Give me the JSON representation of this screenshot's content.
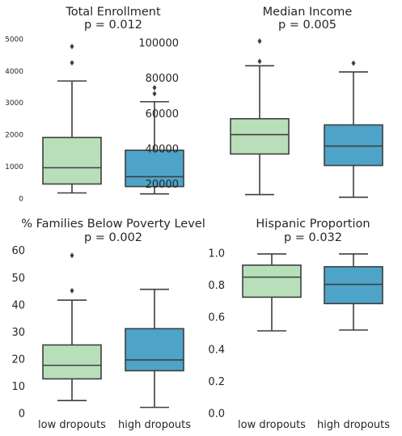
{
  "colors": {
    "low_dropouts": "#b8dfba",
    "high_dropouts": "#4ea3c8",
    "line": "#3f3f3f"
  },
  "chart_data": [
    {
      "type": "box",
      "title": "Total Enrollment",
      "subtitle": "p = 0.012",
      "categories": [
        "low dropouts",
        "high dropouts"
      ],
      "show_xticks": false,
      "ylim": [
        0,
        5200
      ],
      "yticks": [
        0,
        1000,
        2000,
        3000,
        4000,
        5000
      ],
      "ytick_labels": [
        "0",
        "1000",
        "2000",
        "3000",
        "4000",
        "5000"
      ],
      "boxes": [
        {
          "name": "low dropouts",
          "whisker_low": 190,
          "q1": 470,
          "median": 980,
          "q3": 1930,
          "whisker_high": 3700,
          "outliers": [
            4270,
            4780
          ]
        },
        {
          "name": "high dropouts",
          "whisker_low": 160,
          "q1": 390,
          "median": 700,
          "q3": 1530,
          "whisker_high": 3050,
          "outliers": [
            3300,
            3490
          ]
        }
      ]
    },
    {
      "type": "box",
      "title": "Median Income",
      "subtitle": "p = 0.005",
      "categories": [
        "low dropouts",
        "high dropouts"
      ],
      "show_xticks": false,
      "ylim": [
        12000,
        106000
      ],
      "yticks": [
        20000,
        40000,
        60000,
        80000,
        100000
      ],
      "ytick_labels": [
        "20000",
        "40000",
        "60000",
        "80000",
        "100000"
      ],
      "boxes": [
        {
          "name": "low dropouts",
          "whisker_low": 14500,
          "q1": 37500,
          "median": 48500,
          "q3": 57500,
          "whisker_high": 87500,
          "outliers": [
            90000,
            101500
          ]
        },
        {
          "name": "high dropouts",
          "whisker_low": 13000,
          "q1": 31000,
          "median": 42000,
          "q3": 54000,
          "whisker_high": 84000,
          "outliers": [
            89000
          ]
        }
      ]
    },
    {
      "type": "box",
      "title": "% Families Below Poverty Level",
      "subtitle": "p = 0.002",
      "categories": [
        "low dropouts",
        "high dropouts"
      ],
      "show_xticks": true,
      "ylim": [
        0,
        62
      ],
      "yticks": [
        0,
        10,
        20,
        30,
        40,
        50,
        60
      ],
      "ytick_labels": [
        "0",
        "10",
        "20",
        "30",
        "40",
        "50",
        "60"
      ],
      "boxes": [
        {
          "name": "low dropouts",
          "whisker_low": 5,
          "q1": 13,
          "median": 18,
          "q3": 25.5,
          "whisker_high": 42,
          "outliers": [
            45.5,
            58.5
          ]
        },
        {
          "name": "high dropouts",
          "whisker_low": 2.5,
          "q1": 16,
          "median": 20,
          "q3": 31.5,
          "whisker_high": 46,
          "outliers": []
        }
      ]
    },
    {
      "type": "box",
      "title": "Hispanic Proportion",
      "subtitle": "p = 0.032",
      "categories": [
        "low dropouts",
        "high dropouts"
      ],
      "show_xticks": true,
      "ylim": [
        0,
        1.05
      ],
      "yticks": [
        0,
        0.2,
        0.4,
        0.6,
        0.8,
        1.0
      ],
      "ytick_labels": [
        "0.0",
        "0.2",
        "0.4",
        "0.6",
        "0.8",
        "1.0"
      ],
      "boxes": [
        {
          "name": "low dropouts",
          "whisker_low": 0.52,
          "q1": 0.73,
          "median": 0.855,
          "q3": 0.93,
          "whisker_high": 1.0,
          "outliers": []
        },
        {
          "name": "high dropouts",
          "whisker_low": 0.525,
          "q1": 0.69,
          "median": 0.81,
          "q3": 0.92,
          "whisker_high": 1.0,
          "outliers": []
        }
      ]
    }
  ]
}
